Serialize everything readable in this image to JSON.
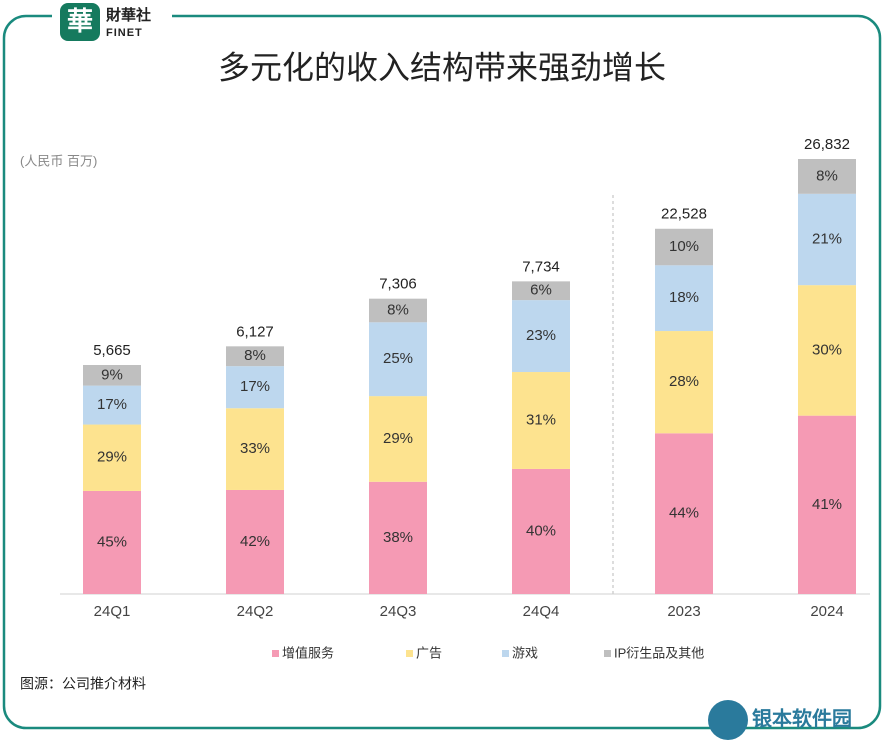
{
  "header": {
    "logo_mark": "華",
    "logo_cn": "財華社",
    "logo_en": "FINET"
  },
  "chart_data": {
    "type": "stacked_bar",
    "title": "多元化的收入结构带来强劲增长",
    "unit_label": "(人民币 百万)",
    "categories": [
      "24Q1",
      "24Q2",
      "24Q3",
      "24Q4",
      "2023",
      "2024"
    ],
    "series": [
      {
        "name": "增值服务",
        "color": "#f59ab4",
        "values": [
          45,
          42,
          38,
          40,
          44,
          41
        ],
        "value_labels": [
          "45%",
          "42%",
          "38%",
          "40%",
          "44%",
          "41%"
        ]
      },
      {
        "name": "广告",
        "color": "#fde38f",
        "values": [
          29,
          33,
          29,
          31,
          28,
          30
        ],
        "value_labels": [
          "29%",
          "33%",
          "29%",
          "31%",
          "28%",
          "30%"
        ]
      },
      {
        "name": "游戏",
        "color": "#bdd7ee",
        "values": [
          17,
          17,
          25,
          23,
          18,
          21
        ],
        "value_labels": [
          "17%",
          "17%",
          "25%",
          "23%",
          "18%",
          "21%"
        ]
      },
      {
        "name": "IP衍生品及其他",
        "color": "#bfbfbf",
        "values": [
          9,
          8,
          8,
          6,
          10,
          8
        ],
        "value_labels": [
          "9%",
          "8%",
          "8%",
          "6%",
          "10%",
          "8%"
        ]
      }
    ],
    "totals": {
      "values": [
        5665,
        6127,
        7306,
        7734,
        22528,
        26832
      ],
      "value_labels": [
        "5,665",
        "6,127",
        "7,306",
        "7,734",
        "22,528",
        "26,832"
      ]
    }
  },
  "footer": {
    "source": "图源：公司推介材料",
    "watermark": "银本软件园"
  }
}
